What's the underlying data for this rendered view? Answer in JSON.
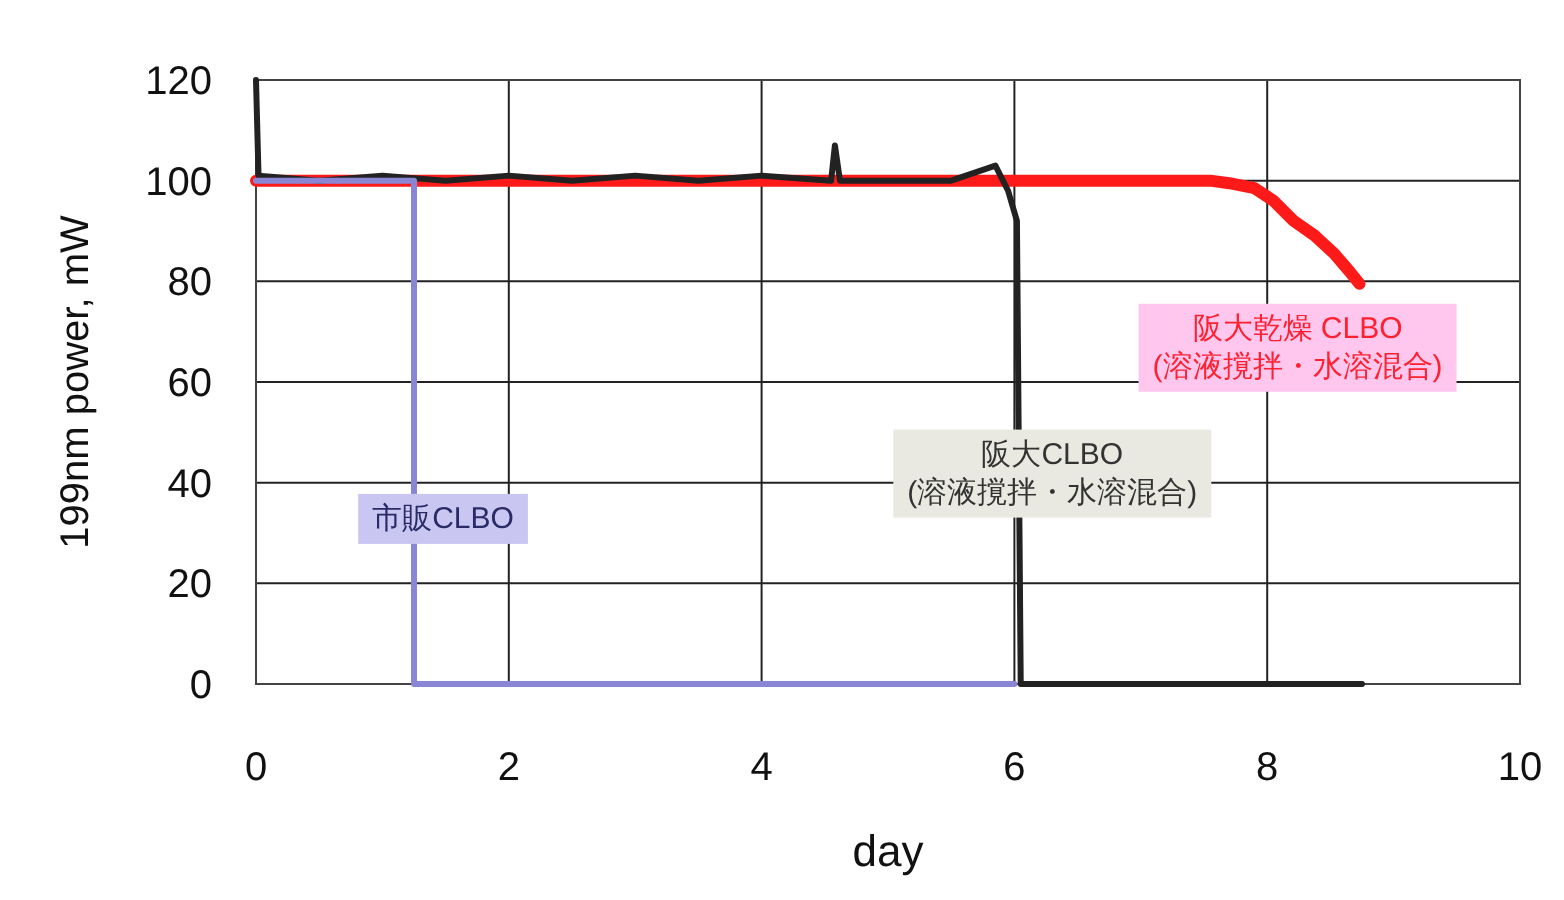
{
  "chart_data": {
    "type": "line",
    "xlabel": "day",
    "ylabel": "199nm power, mW",
    "xlim": [
      0,
      10
    ],
    "xticks": [
      0,
      2,
      4,
      6,
      8,
      10
    ],
    "ylim": [
      0,
      120
    ],
    "yticks": [
      0,
      20,
      40,
      60,
      80,
      100,
      120
    ],
    "grid": true,
    "legend": false,
    "series": [
      {
        "name": "市販CLBO",
        "color": "#8a86d6",
        "x": [
          0,
          1.25,
          1.25,
          6
        ],
        "values": [
          100,
          100,
          0,
          0
        ]
      },
      {
        "name": "阪大CLBO\n(溶液撹拌・水溶混合)",
        "color": "#222222",
        "x": [
          0,
          0.02,
          0.5,
          1.0,
          1.5,
          2.0,
          2.5,
          3.0,
          3.5,
          4.0,
          4.55,
          4.58,
          4.62,
          5.0,
          5.5,
          5.85,
          5.95,
          6.02,
          6.05,
          6.1,
          8.75
        ],
        "values": [
          120,
          101,
          100,
          101,
          100,
          101,
          100,
          101,
          100,
          101,
          100,
          107,
          100,
          100,
          100,
          103,
          98,
          92,
          0,
          0,
          0
        ]
      },
      {
        "name": "阪大乾燥 CLBO\n(溶液撹拌・水溶混合)",
        "color": "#ff1a1a",
        "x": [
          0,
          2,
          4,
          6,
          7.55,
          7.7,
          7.9,
          8.05,
          8.21,
          8.38,
          8.53,
          8.65,
          8.73
        ],
        "values": [
          100,
          100,
          100,
          100,
          100,
          99.5,
          98.5,
          96,
          92,
          89,
          85.5,
          82,
          79.5
        ]
      }
    ]
  }
}
